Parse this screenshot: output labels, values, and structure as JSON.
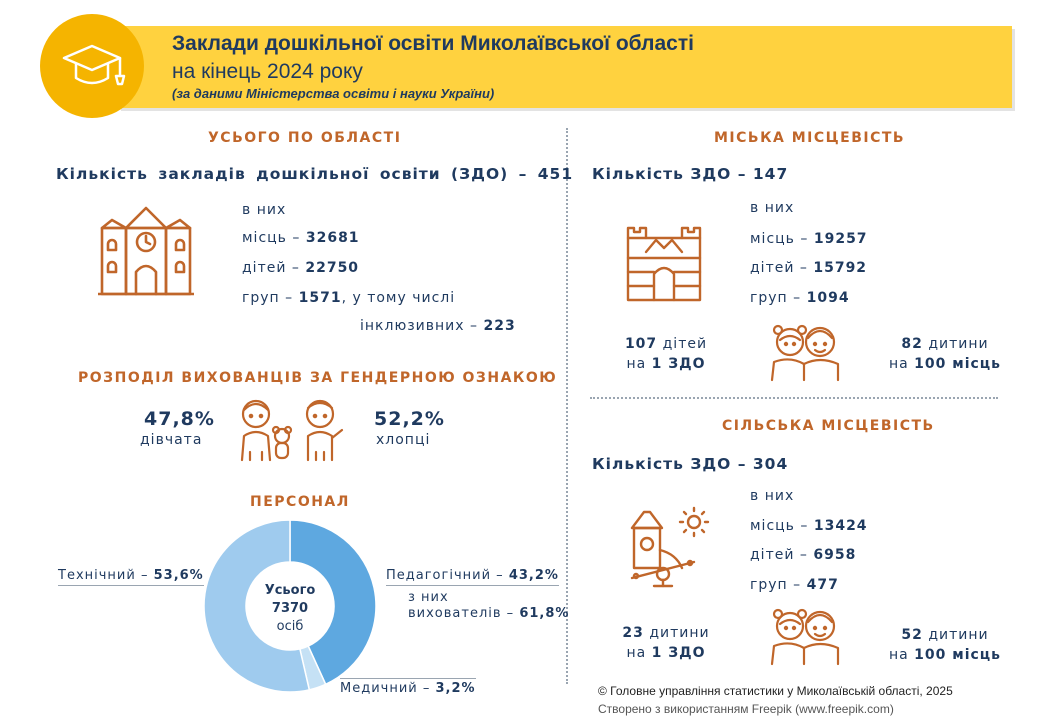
{
  "header": {
    "title_line1": "Заклади дошкільної освіти Миколаївської області",
    "title_line2": "на кінець 2024 року",
    "source_note": "(за даними Міністерства освіти і науки України)"
  },
  "overall": {
    "section_title": "УСЬОГО ПО ОБЛАСТІ",
    "count_text": "Кількість закладів дошкільної освіти (ЗДО) – 451",
    "of_them": "в них",
    "places_label": "місць –",
    "places_value": "32681",
    "children_label": "дітей –",
    "children_value": "22750",
    "groups_label": "груп –",
    "groups_value": "1571",
    "groups_suffix": ", у тому числі",
    "inclusive_label": "інклюзивних –",
    "inclusive_value": "223"
  },
  "gender": {
    "section_title": "РОЗПОДІЛ ВИХОВАНЦІВ ЗА ГЕНДЕРНОЮ ОЗНАКОЮ",
    "girls_pct": "47,8%",
    "girls_label": "дівчата",
    "boys_pct": "52,2%",
    "boys_label": "хлопці"
  },
  "urban": {
    "section_title": "МІСЬКА МІСЦЕВІСТЬ",
    "count_text": "Кількість ЗДО – 147",
    "of_them": "в них",
    "places_label": "місць –",
    "places_value": "19257",
    "children_label": "дітей –",
    "children_value": "15792",
    "groups_label": "груп –",
    "groups_value": "1094",
    "per_zdo_value": "107",
    "per_zdo_unit": "дітей",
    "per_zdo_line2_pre": "на",
    "per_zdo_line2_val": "1 ЗДО",
    "per_100_value": "82",
    "per_100_unit": "дитини",
    "per_100_line2_pre": "на",
    "per_100_line2_val": "100 місць"
  },
  "rural": {
    "section_title": "СІЛЬСЬКА МІСЦЕВІСТЬ",
    "count_text": "Кількість ЗДО – 304",
    "of_them": "в них",
    "places_label": "місць –",
    "places_value": "13424",
    "children_label": "дітей –",
    "children_value": "6958",
    "groups_label": "груп –",
    "groups_value": "477",
    "per_zdo_value": "23",
    "per_zdo_unit": "дитини",
    "per_zdo_line2_pre": "на",
    "per_zdo_line2_val": "1 ЗДО",
    "per_100_value": "52",
    "per_100_unit": "дитини",
    "per_100_line2_pre": "на",
    "per_100_line2_val": "100 місць"
  },
  "staff": {
    "section_title": "ПЕРСОНАЛ",
    "center_line1": "Усього",
    "center_line2": "7370",
    "center_line3": "осіб",
    "ped_label": "Педагогічний –",
    "ped_value": "43,2%",
    "ped_sub1": "з них",
    "ped_sub2": "вихователів –",
    "ped_sub_value": "61,8%",
    "med_label": "Медичний –",
    "med_value": "3,2%",
    "tech_label": "Технічний –",
    "tech_value": "53,6%"
  },
  "chart_data": {
    "type": "pie",
    "title": "ПЕРСОНАЛ",
    "categories": [
      "Педагогічний",
      "Медичний",
      "Технічний"
    ],
    "values": [
      43.2,
      3.2,
      53.6
    ],
    "colors": [
      "#5ea8e0",
      "#c5e1f5",
      "#9fcbee"
    ],
    "total": 7370,
    "sub_annotation": {
      "label": "з них вихователів",
      "value": 61.8
    }
  },
  "colors": {
    "accent_orange": "#c0662a",
    "header_yellow": "#ffd23f",
    "header_circle": "#f5b400",
    "text_navy": "#1f3a5f"
  },
  "icons": [
    "graduation-cap-icon",
    "kindergarten-building-icon",
    "children-icon",
    "toy-castle-icon",
    "playground-icon"
  ],
  "footer": {
    "copyright": "© Головне управління статистики у Миколаївській області, 2025",
    "credit": "Створено з використанням Freepik (www.freepik.com)"
  }
}
